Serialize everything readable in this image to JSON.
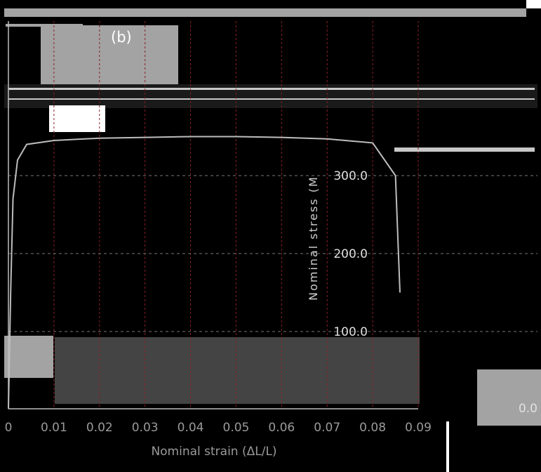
{
  "chart_data": {
    "type": "line",
    "panel_label": "(b)",
    "xlabel": "Nominal strain (ΔL/L)",
    "ylabel": "Nominal stress (M",
    "x_ticks": [
      "0",
      "0.01",
      "0.02",
      "0.03",
      "0.04",
      "0.05",
      "0.06",
      "0.07",
      "0.08",
      "0.09"
    ],
    "y_ticks": [
      {
        "label": "300.0",
        "value": 300
      },
      {
        "label": "200.0",
        "value": 200
      },
      {
        "label": "100.0",
        "value": 100
      }
    ],
    "y_tick_zero": "0.0",
    "xlim": [
      0,
      0.09
    ],
    "ylim": [
      0,
      400
    ],
    "grid": true,
    "series": [
      {
        "x": [
          0.0,
          0.0005,
          0.001,
          0.002,
          0.004,
          0.01,
          0.02,
          0.03,
          0.04,
          0.05,
          0.06,
          0.07,
          0.08,
          0.085,
          0.086
        ],
        "y": [
          0,
          150,
          270,
          320,
          340,
          345,
          348,
          349,
          350,
          350,
          349,
          347,
          342,
          300,
          150
        ]
      }
    ]
  },
  "colors": {
    "background": "#000000",
    "grid": "#8c2020",
    "curve": "#bdbdbd",
    "block": "#a3a3a3",
    "white": "#ffffff"
  }
}
